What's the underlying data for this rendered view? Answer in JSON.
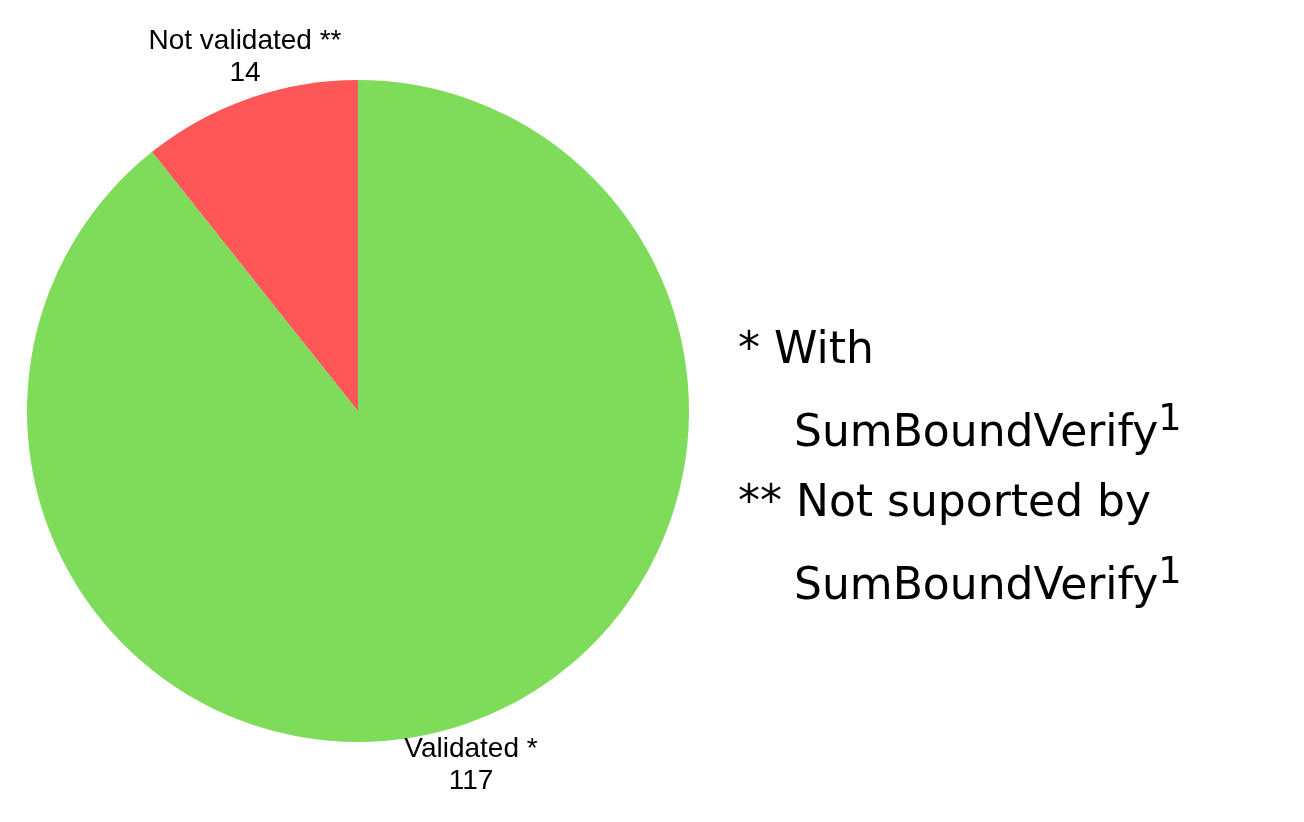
{
  "chart_data": {
    "type": "pie",
    "categories": [
      "Validated *",
      "Not validated **"
    ],
    "values": [
      117,
      14
    ],
    "colors": [
      "#7fdb5a",
      "#ff5757"
    ],
    "data_labels": true,
    "legend": false,
    "annotations": [
      "* With SumBoundVerify$^{1}$",
      "** Not suported by SumBoundVerify$^{1}$"
    ]
  }
}
